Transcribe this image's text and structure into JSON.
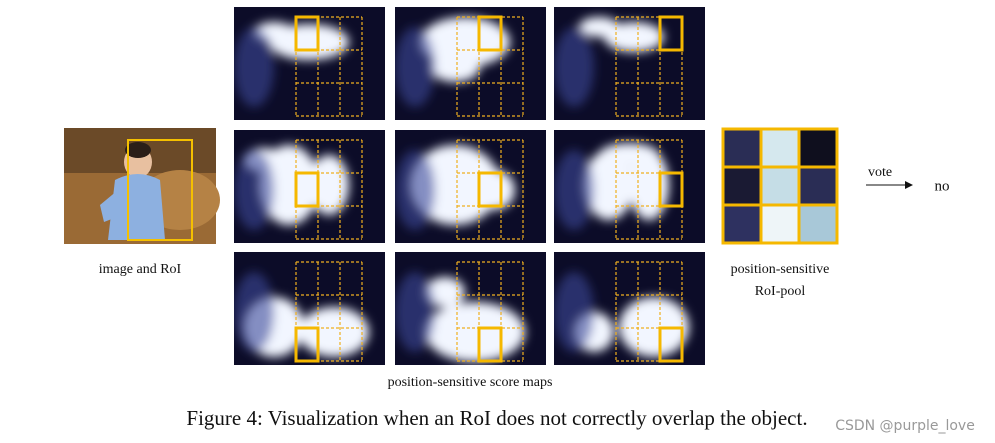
{
  "figure": {
    "image_label": "image and RoI",
    "score_maps_label": "position-sensitive score maps",
    "pool_label": [
      "position-sensitive",
      "RoI-pool"
    ],
    "vote_label": "vote",
    "result": "no",
    "caption": "Figure 4: Visualization when an RoI does not correctly overlap the object.",
    "watermark": "CSDN @purple_love"
  }
}
